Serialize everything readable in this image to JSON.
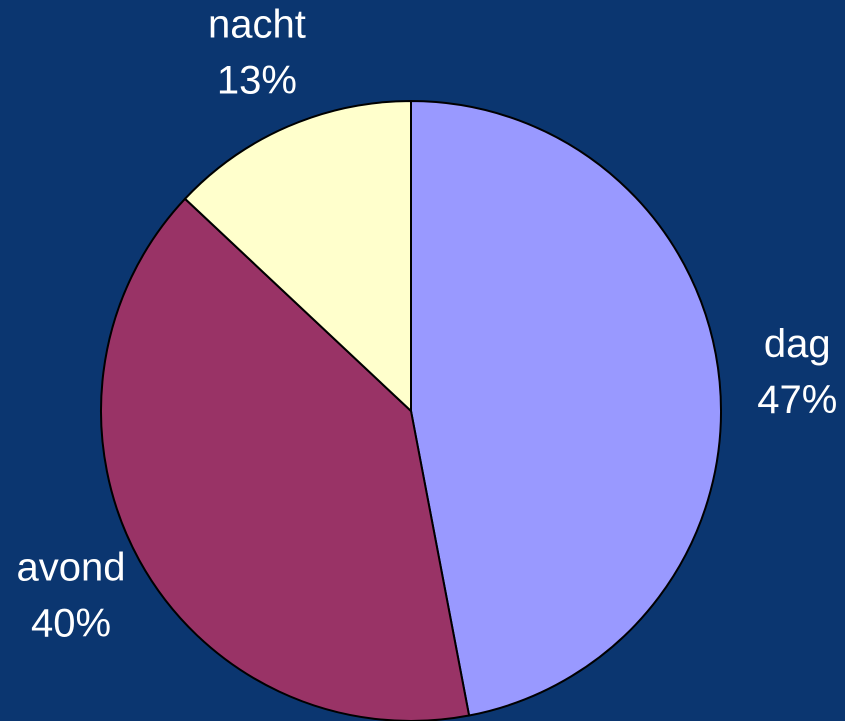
{
  "chart_data": {
    "type": "pie",
    "categories": [
      "dag",
      "avond",
      "nacht"
    ],
    "values": [
      47,
      40,
      13
    ],
    "value_labels": [
      "47%",
      "40%",
      "13%"
    ],
    "colors": [
      "#9999ff",
      "#993366",
      "#ffffcc"
    ]
  }
}
